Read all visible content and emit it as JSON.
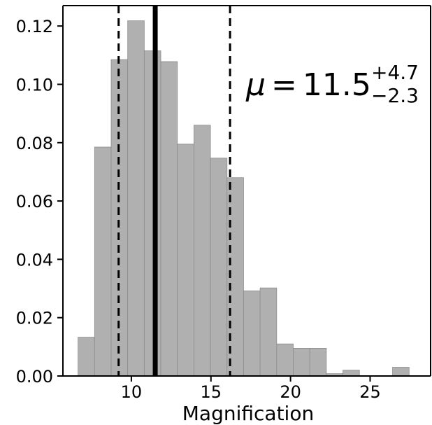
{
  "chart_data": {
    "type": "bar",
    "title": "",
    "xlabel": "Magnification",
    "ylabel": "",
    "xlim": [
      5.7,
      28.8
    ],
    "ylim": [
      0.0,
      0.127
    ],
    "grid": false,
    "bar_color": "#b0b0b0",
    "bin_width": 1.04,
    "bins": [
      {
        "x0": 6.65,
        "value": 0.0133
      },
      {
        "x0": 7.69,
        "value": 0.0785
      },
      {
        "x0": 8.73,
        "value": 0.1085
      },
      {
        "x0": 9.77,
        "value": 0.1218
      },
      {
        "x0": 10.81,
        "value": 0.1115
      },
      {
        "x0": 11.85,
        "value": 0.1078
      },
      {
        "x0": 12.89,
        "value": 0.0795
      },
      {
        "x0": 13.93,
        "value": 0.086
      },
      {
        "x0": 14.97,
        "value": 0.0747
      },
      {
        "x0": 16.01,
        "value": 0.068
      },
      {
        "x0": 17.05,
        "value": 0.0292
      },
      {
        "x0": 18.09,
        "value": 0.0302
      },
      {
        "x0": 19.13,
        "value": 0.011
      },
      {
        "x0": 20.17,
        "value": 0.0095
      },
      {
        "x0": 21.21,
        "value": 0.0095
      },
      {
        "x0": 22.25,
        "value": 0.0008
      },
      {
        "x0": 23.29,
        "value": 0.002
      },
      {
        "x0": 24.33,
        "value": 0.0
      },
      {
        "x0": 25.37,
        "value": 0.0
      },
      {
        "x0": 26.41,
        "value": 0.003
      }
    ],
    "vlines": [
      {
        "x": 11.5,
        "style": "solid"
      },
      {
        "x": 9.2,
        "style": "dashed"
      },
      {
        "x": 16.2,
        "style": "dashed"
      }
    ],
    "x_ticks": [
      10,
      15,
      20,
      25
    ],
    "x_tick_labels": [
      "10",
      "15",
      "20",
      "25"
    ],
    "y_ticks": [
      0.0,
      0.02,
      0.04,
      0.06,
      0.08,
      0.1,
      0.12
    ],
    "y_tick_labels": [
      "0.00",
      "0.02",
      "0.04",
      "0.06",
      "0.08",
      "0.10",
      "0.12"
    ],
    "annotation": {
      "symbol": "μ",
      "equals": "=",
      "value": "11.5",
      "upper": "+4.7",
      "lower": "−2.3"
    }
  }
}
